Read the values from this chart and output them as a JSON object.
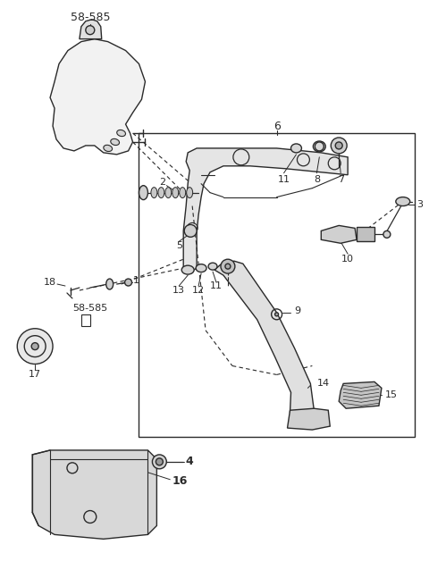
{
  "bg_color": "#ffffff",
  "line_color": "#2a2a2a",
  "fig_width": 4.8,
  "fig_height": 6.47,
  "dpi": 100
}
